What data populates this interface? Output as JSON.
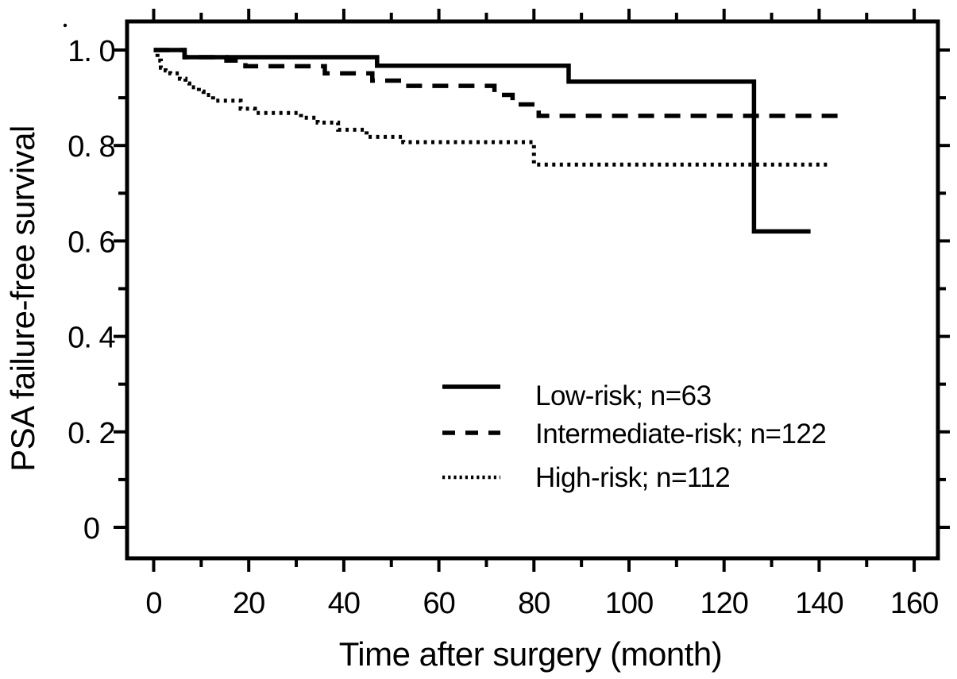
{
  "colors": {
    "ink": "#000000",
    "background": "#ffffff"
  },
  "legend": {
    "items": [
      {
        "id": "low-risk",
        "label": "Low-risk;  n=63",
        "style": "solid"
      },
      {
        "id": "intermediate-risk",
        "label": "Intermediate-risk; n=122",
        "style": "dashed"
      },
      {
        "id": "high-risk",
        "label": "High-risk; n=112",
        "style": "dotted"
      }
    ]
  },
  "chart_data": {
    "type": "line",
    "variant": "kaplan-meier-step-curves",
    "title": "",
    "xlabel": "Time after surgery (month)",
    "ylabel": "PSA failure-free survival",
    "xlim": [
      -6,
      165
    ],
    "ylim": [
      -0.07,
      1.06
    ],
    "grid": false,
    "legend_position": "inside lower-center-right",
    "x_ticks": {
      "major": [
        0,
        20,
        40,
        60,
        80,
        100,
        120,
        140,
        160
      ],
      "minor": [
        10,
        30,
        50,
        70,
        90,
        110,
        130,
        150
      ],
      "labels": [
        "0",
        "20",
        "40",
        "60",
        "80",
        "100",
        "120",
        "140",
        "160"
      ]
    },
    "y_ticks": {
      "major": [
        1.0,
        0.8,
        0.6,
        0.4,
        0.2,
        0
      ],
      "minor": [
        0.9,
        0.7,
        0.5,
        0.3,
        0.1
      ],
      "labels": [
        "1. 0",
        "0. 8",
        "0. 6",
        "0. 4",
        "0. 2",
        "0"
      ]
    },
    "series": [
      {
        "id": "low-risk",
        "name": "Low-risk;  n=63",
        "n": 63,
        "line_style": "solid",
        "steps": [
          [
            0,
            1.0
          ],
          [
            6.5,
            0.985
          ],
          [
            47,
            0.967
          ],
          [
            87.3,
            0.934
          ],
          [
            126.3,
            0.62
          ]
        ],
        "end_month": 138.2
      },
      {
        "id": "intermediate-risk",
        "name": "Intermediate-risk; n=122",
        "n": 122,
        "line_style": "dashed",
        "steps": [
          [
            0,
            1.0
          ],
          [
            6.5,
            0.985
          ],
          [
            15.3,
            0.978
          ],
          [
            19.3,
            0.966
          ],
          [
            36,
            0.951
          ],
          [
            46,
            0.936
          ],
          [
            52.5,
            0.925
          ],
          [
            71.7,
            0.906
          ],
          [
            75.5,
            0.886
          ],
          [
            81,
            0.862
          ]
        ],
        "end_month": 145.8
      },
      {
        "id": "high-risk",
        "name": "High-risk; n=112",
        "n": 112,
        "line_style": "dotted",
        "steps": [
          [
            0,
            1.0
          ],
          [
            0.8,
            0.978
          ],
          [
            1.5,
            0.963
          ],
          [
            2.5,
            0.957
          ],
          [
            3.5,
            0.951
          ],
          [
            5.5,
            0.94
          ],
          [
            6.7,
            0.93
          ],
          [
            7.5,
            0.922
          ],
          [
            9.5,
            0.913
          ],
          [
            10.5,
            0.906
          ],
          [
            12.5,
            0.894
          ],
          [
            18.3,
            0.877
          ],
          [
            21.3,
            0.868
          ],
          [
            31,
            0.858
          ],
          [
            34.5,
            0.848
          ],
          [
            38.8,
            0.833
          ],
          [
            44.8,
            0.818
          ],
          [
            52.5,
            0.807
          ],
          [
            80,
            0.76
          ]
        ],
        "end_month": 141.7
      }
    ]
  }
}
